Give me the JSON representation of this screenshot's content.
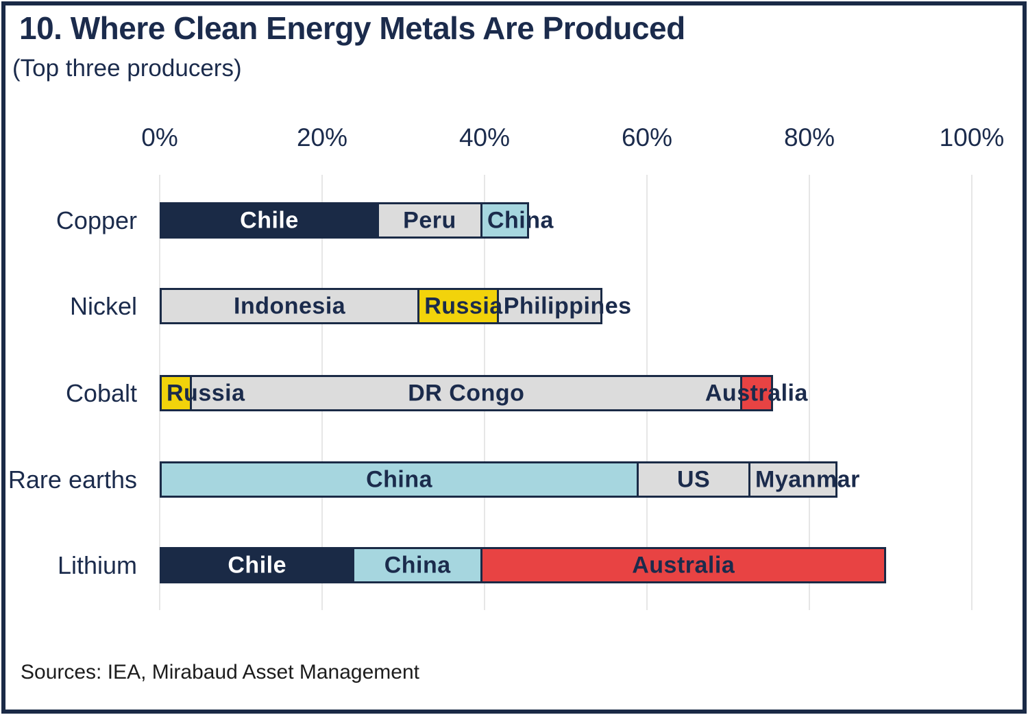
{
  "header": {
    "title": "10. Where Clean Energy Metals Are Produced",
    "subtitle": "(Top three producers)"
  },
  "footer": {
    "sources": "Sources: IEA, Mirabaud Asset Management"
  },
  "palette": {
    "navy": "#1A2A46",
    "gray": "#DCDCDC",
    "lightblue": "#A6D6DF",
    "yellow": "#F2D30B",
    "red": "#E84343",
    "gridline": "#E6E6E6",
    "text_navy": "#1B2B4C"
  },
  "chart_data": {
    "type": "bar",
    "orientation": "horizontal",
    "stacked": true,
    "unit": "%",
    "title": "10. Where Clean Energy Metals Are Produced",
    "subtitle": "(Top three producers)",
    "xlabel": "",
    "ylabel": "",
    "xlim": [
      0,
      100
    ],
    "x_ticks": [
      "0%",
      "20%",
      "40%",
      "60%",
      "80%",
      "100%"
    ],
    "x_tick_values": [
      0,
      20,
      40,
      60,
      80,
      100
    ],
    "grid": true,
    "legend": false,
    "categories": [
      "Copper",
      "Nickel",
      "Cobalt",
      "Rare earths",
      "Lithium"
    ],
    "rows": [
      {
        "metal": "Copper",
        "segments": [
          {
            "producer": "Chile",
            "value": 27,
            "color": "#1A2A46",
            "label_color": "#FFFFFF",
            "label_align": "center"
          },
          {
            "producer": "Peru",
            "value": 13,
            "color": "#DCDCDC",
            "label_color": "#1B2B4C",
            "label_align": "center"
          },
          {
            "producer": "China",
            "value": 6,
            "color": "#A6D6DF",
            "label_color": "#1B2B4C",
            "label_align": "start"
          }
        ]
      },
      {
        "metal": "Nickel",
        "segments": [
          {
            "producer": "Indonesia",
            "value": 32,
            "color": "#DCDCDC",
            "label_color": "#1B2B4C",
            "label_align": "center"
          },
          {
            "producer": "Russia",
            "value": 10,
            "color": "#F2D30B",
            "label_color": "#1B2B4C",
            "label_align": "start"
          },
          {
            "producer": "Philippines",
            "value": 13,
            "color": "#DCDCDC",
            "label_color": "#1B2B4C",
            "label_align": "start"
          }
        ]
      },
      {
        "metal": "Cobalt",
        "segments": [
          {
            "producer": "Russia",
            "value": 4,
            "color": "#F2D30B",
            "label_color": "#1B2B4C",
            "label_align": "start"
          },
          {
            "producer": "DR Congo",
            "value": 68,
            "color": "#DCDCDC",
            "label_color": "#1B2B4C",
            "label_align": "center"
          },
          {
            "producer": "Australia",
            "value": 4,
            "color": "#E84343",
            "label_color": "#1B2B4C",
            "label_align": "center"
          }
        ]
      },
      {
        "metal": "Rare earths",
        "segments": [
          {
            "producer": "China",
            "value": 59,
            "color": "#A6D6DF",
            "label_color": "#1B2B4C",
            "label_align": "center"
          },
          {
            "producer": "US",
            "value": 14,
            "color": "#DCDCDC",
            "label_color": "#1B2B4C",
            "label_align": "center"
          },
          {
            "producer": "Myanmar",
            "value": 11,
            "color": "#DCDCDC",
            "label_color": "#1B2B4C",
            "label_align": "start"
          }
        ]
      },
      {
        "metal": "Lithium",
        "segments": [
          {
            "producer": "Chile",
            "value": 24,
            "color": "#1A2A46",
            "label_color": "#FFFFFF",
            "label_align": "center"
          },
          {
            "producer": "China",
            "value": 16,
            "color": "#A6D6DF",
            "label_color": "#1B2B4C",
            "label_align": "center"
          },
          {
            "producer": "Australia",
            "value": 50,
            "color": "#E84343",
            "label_color": "#1B2B4C",
            "label_align": "center"
          }
        ]
      }
    ]
  }
}
